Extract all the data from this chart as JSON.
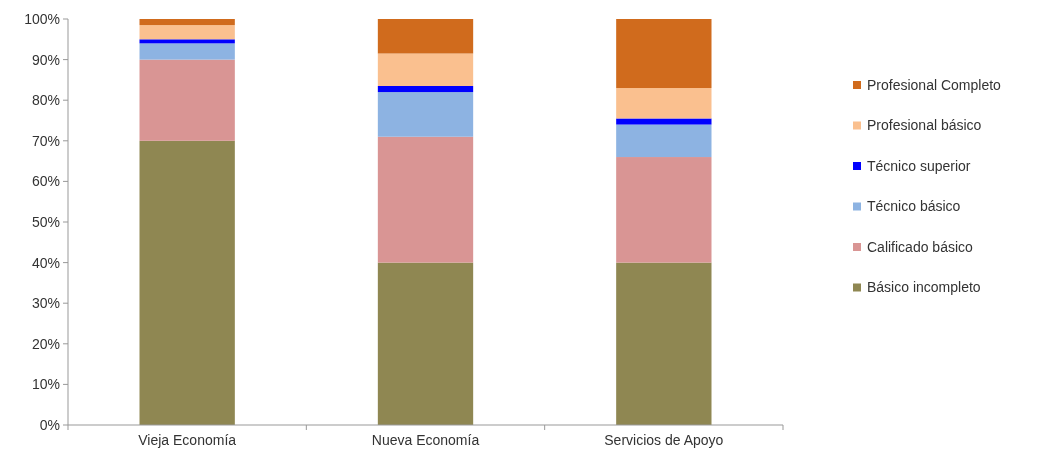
{
  "chart_data": {
    "type": "bar",
    "stacked": true,
    "categories": [
      "Vieja Economía",
      "Nueva Economía",
      "Servicios de Apoyo"
    ],
    "series": [
      {
        "name": "Básico incompleto",
        "color": "#8f8752",
        "values": [
          70,
          40,
          40
        ]
      },
      {
        "name": "Calificado básico",
        "color": "#d99594",
        "values": [
          20,
          31,
          26
        ]
      },
      {
        "name": "Técnico básico",
        "color": "#8db3e2",
        "values": [
          4,
          11,
          8
        ]
      },
      {
        "name": "Técnico superior",
        "color": "#0000ff",
        "values": [
          1,
          1.5,
          1.5
        ]
      },
      {
        "name": "Profesional básico",
        "color": "#fac08f",
        "values": [
          3.5,
          8,
          7.5
        ]
      },
      {
        "name": "Profesional Completo",
        "color": "#d06b1d",
        "values": [
          1.5,
          8.5,
          17
        ]
      }
    ],
    "ylim": [
      0,
      100
    ],
    "yticks": [
      {
        "value": 0,
        "label": "0%"
      },
      {
        "value": 10,
        "label": "10%"
      },
      {
        "value": 20,
        "label": "20%"
      },
      {
        "value": 30,
        "label": "30%"
      },
      {
        "value": 40,
        "label": "40%"
      },
      {
        "value": 50,
        "label": "50%"
      },
      {
        "value": 60,
        "label": "60%"
      },
      {
        "value": 70,
        "label": "70%"
      },
      {
        "value": 80,
        "label": "80%"
      },
      {
        "value": 90,
        "label": "90%"
      },
      {
        "value": 100,
        "label": "100%"
      }
    ],
    "legend": "right"
  }
}
